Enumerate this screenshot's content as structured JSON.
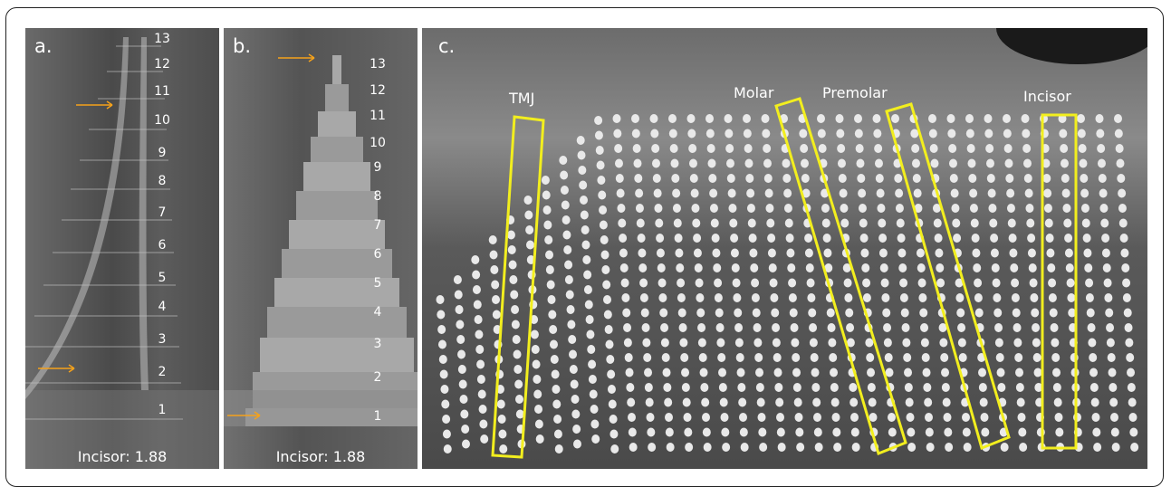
{
  "panels": {
    "a": {
      "label": "a.",
      "caption": "Incisor: 1.88",
      "steps": [
        "13",
        "12",
        "11",
        "10",
        "9",
        "8",
        "7",
        "6",
        "5",
        "4",
        "3",
        "2",
        "1"
      ]
    },
    "b": {
      "label": "b.",
      "caption": "Incisor: 1.88",
      "steps": [
        "13",
        "12",
        "11",
        "10",
        "9",
        "8",
        "7",
        "6",
        "5",
        "4",
        "3",
        "2",
        "1"
      ]
    },
    "c": {
      "label": "c.",
      "regions": {
        "tmj": "TMJ",
        "molar": "Molar",
        "premolar": "Premolar",
        "incisor": "Incisor"
      }
    }
  },
  "colors": {
    "arrow": "#f5a21b",
    "highlight_box": "#f2ee1e",
    "text": "#ffffff"
  }
}
